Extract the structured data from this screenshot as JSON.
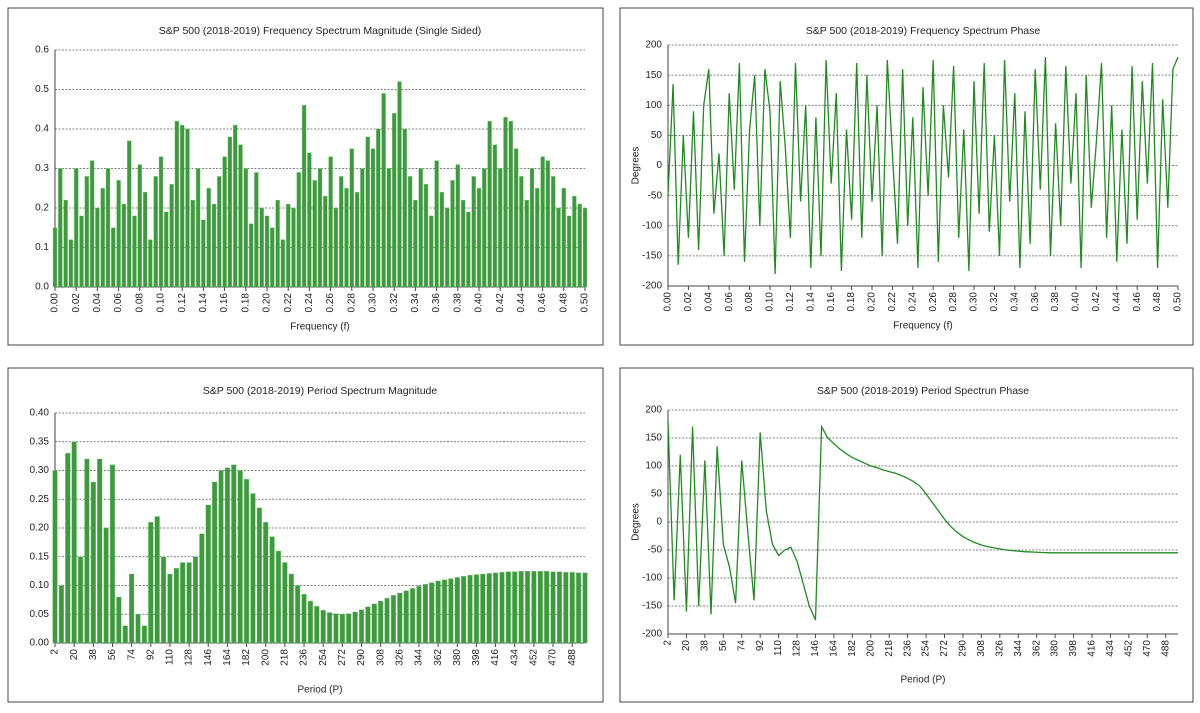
{
  "chart_data": [
    {
      "type": "bar",
      "title": "S&P 500 (2018-2019) Frequency Spectrum Magnitude  (Single Sided)",
      "xlabel": "Frequency (f)",
      "color": "#3d9b3d",
      "grid": true,
      "xlim": [
        0,
        0.5
      ],
      "ylim": [
        0,
        0.6
      ],
      "yticks": [
        {
          "value": 0,
          "label": "0.0"
        },
        0.1,
        0.2,
        0.3,
        0.4,
        0.5,
        0.6
      ],
      "xticks": [
        {
          "value": 0,
          "label": "0.00"
        },
        {
          "value": 0.02,
          "label": "0.02"
        },
        {
          "value": 0.04,
          "label": "0.04"
        },
        {
          "value": 0.06,
          "label": "0.06"
        },
        {
          "value": 0.08,
          "label": "0.08"
        },
        {
          "value": 0.1,
          "label": "0.10"
        },
        {
          "value": 0.12,
          "label": "0.12"
        },
        {
          "value": 0.14,
          "label": "0.14"
        },
        {
          "value": 0.16,
          "label": "0.16"
        },
        {
          "value": 0.18,
          "label": "0.18"
        },
        {
          "value": 0.2,
          "label": "0.20"
        },
        {
          "value": 0.22,
          "label": "0.22"
        },
        {
          "value": 0.24,
          "label": "0.24"
        },
        {
          "value": 0.26,
          "label": "0.26"
        },
        {
          "value": 0.28,
          "label": "0.28"
        },
        {
          "value": 0.3,
          "label": "0.30"
        },
        {
          "value": 0.32,
          "label": "0.32"
        },
        {
          "value": 0.34,
          "label": "0.34"
        },
        {
          "value": 0.36,
          "label": "0.36"
        },
        {
          "value": 0.38,
          "label": "0.38"
        },
        {
          "value": 0.4,
          "label": "0.40"
        },
        {
          "value": 0.42,
          "label": "0.42"
        },
        {
          "value": 0.44,
          "label": "0.44"
        },
        {
          "value": 0.46,
          "label": "0.46"
        },
        {
          "value": 0.48,
          "label": "0.48"
        },
        {
          "value": 0.5,
          "label": "0.50"
        }
      ],
      "x": [
        0,
        0.005,
        0.01,
        0.015,
        0.02,
        0.025,
        0.03,
        0.035,
        0.04,
        0.045,
        0.05,
        0.055,
        0.06,
        0.065,
        0.07,
        0.075,
        0.08,
        0.085,
        0.09,
        0.095,
        0.1,
        0.105,
        0.11,
        0.115,
        0.12,
        0.125,
        0.13,
        0.135,
        0.14,
        0.145,
        0.15,
        0.155,
        0.16,
        0.165,
        0.17,
        0.175,
        0.18,
        0.185,
        0.19,
        0.195,
        0.2,
        0.205,
        0.21,
        0.215,
        0.22,
        0.225,
        0.23,
        0.235,
        0.24,
        0.245,
        0.25,
        0.255,
        0.26,
        0.265,
        0.27,
        0.275,
        0.28,
        0.285,
        0.29,
        0.295,
        0.3,
        0.305,
        0.31,
        0.315,
        0.32,
        0.325,
        0.33,
        0.335,
        0.34,
        0.345,
        0.35,
        0.355,
        0.36,
        0.365,
        0.37,
        0.375,
        0.38,
        0.385,
        0.39,
        0.395,
        0.4,
        0.405,
        0.41,
        0.415,
        0.42,
        0.425,
        0.43,
        0.435,
        0.44,
        0.445,
        0.45,
        0.455,
        0.46,
        0.465,
        0.47,
        0.475,
        0.48,
        0.485,
        0.49,
        0.495,
        0.5
      ],
      "values": [
        0.15,
        0.3,
        0.22,
        0.12,
        0.3,
        0.18,
        0.28,
        0.32,
        0.2,
        0.25,
        0.3,
        0.15,
        0.27,
        0.21,
        0.37,
        0.18,
        0.31,
        0.24,
        0.12,
        0.28,
        0.33,
        0.19,
        0.26,
        0.42,
        0.41,
        0.4,
        0.22,
        0.3,
        0.17,
        0.25,
        0.21,
        0.28,
        0.33,
        0.38,
        0.41,
        0.36,
        0.3,
        0.16,
        0.29,
        0.2,
        0.18,
        0.15,
        0.22,
        0.12,
        0.21,
        0.2,
        0.29,
        0.46,
        0.34,
        0.27,
        0.3,
        0.23,
        0.33,
        0.2,
        0.28,
        0.25,
        0.35,
        0.24,
        0.3,
        0.38,
        0.35,
        0.4,
        0.49,
        0.3,
        0.44,
        0.52,
        0.4,
        0.28,
        0.22,
        0.3,
        0.26,
        0.18,
        0.32,
        0.24,
        0.2,
        0.27,
        0.31,
        0.22,
        0.19,
        0.28,
        0.25,
        0.3,
        0.42,
        0.36,
        0.3,
        0.43,
        0.42,
        0.35,
        0.28,
        0.22,
        0.3,
        0.25,
        0.33,
        0.32,
        0.28,
        0.2,
        0.25,
        0.18,
        0.23,
        0.21,
        0.2
      ]
    },
    {
      "type": "line",
      "title": "S&P 500 (2018-2019) Frequency Spectrum Phase",
      "xlabel": "Frequency (f)",
      "ylabel": "Degrees",
      "color": "#1f8c1f",
      "grid": true,
      "xlim": [
        0,
        0.5
      ],
      "ylim": [
        -200,
        200
      ],
      "yticks": [
        -200,
        -150,
        -100,
        -50,
        0,
        50,
        100,
        150,
        200
      ],
      "xticks": [
        {
          "value": 0,
          "label": "0.00"
        },
        {
          "value": 0.02,
          "label": "0.02"
        },
        {
          "value": 0.04,
          "label": "0.04"
        },
        {
          "value": 0.06,
          "label": "0.06"
        },
        {
          "value": 0.08,
          "label": "0.08"
        },
        {
          "value": 0.1,
          "label": "0.10"
        },
        {
          "value": 0.12,
          "label": "0.12"
        },
        {
          "value": 0.14,
          "label": "0.14"
        },
        {
          "value": 0.16,
          "label": "0.16"
        },
        {
          "value": 0.18,
          "label": "0.18"
        },
        {
          "value": 0.2,
          "label": "0.20"
        },
        {
          "value": 0.22,
          "label": "0.22"
        },
        {
          "value": 0.24,
          "label": "0.24"
        },
        {
          "value": 0.26,
          "label": "0.26"
        },
        {
          "value": 0.28,
          "label": "0.28"
        },
        {
          "value": 0.3,
          "label": "0.30"
        },
        {
          "value": 0.32,
          "label": "0.32"
        },
        {
          "value": 0.34,
          "label": "0.34"
        },
        {
          "value": 0.36,
          "label": "0.36"
        },
        {
          "value": 0.38,
          "label": "0.38"
        },
        {
          "value": 0.4,
          "label": "0.40"
        },
        {
          "value": 0.42,
          "label": "0.42"
        },
        {
          "value": 0.44,
          "label": "0.44"
        },
        {
          "value": 0.46,
          "label": "0.46"
        },
        {
          "value": 0.48,
          "label": "0.48"
        },
        {
          "value": 0.5,
          "label": "0.50"
        }
      ],
      "x": [
        0,
        0.005,
        0.01,
        0.015,
        0.02,
        0.025,
        0.03,
        0.035,
        0.04,
        0.045,
        0.05,
        0.055,
        0.06,
        0.065,
        0.07,
        0.075,
        0.08,
        0.085,
        0.09,
        0.095,
        0.1,
        0.105,
        0.11,
        0.115,
        0.12,
        0.125,
        0.13,
        0.135,
        0.14,
        0.145,
        0.15,
        0.155,
        0.16,
        0.165,
        0.17,
        0.175,
        0.18,
        0.185,
        0.19,
        0.195,
        0.2,
        0.205,
        0.21,
        0.215,
        0.22,
        0.225,
        0.23,
        0.235,
        0.24,
        0.245,
        0.25,
        0.255,
        0.26,
        0.265,
        0.27,
        0.275,
        0.28,
        0.285,
        0.29,
        0.295,
        0.3,
        0.305,
        0.31,
        0.315,
        0.32,
        0.325,
        0.33,
        0.335,
        0.34,
        0.345,
        0.35,
        0.355,
        0.36,
        0.365,
        0.37,
        0.375,
        0.38,
        0.385,
        0.39,
        0.395,
        0.4,
        0.405,
        0.41,
        0.415,
        0.42,
        0.425,
        0.43,
        0.435,
        0.44,
        0.445,
        0.45,
        0.455,
        0.46,
        0.465,
        0.47,
        0.475,
        0.48,
        0.485,
        0.49,
        0.495,
        0.5
      ],
      "values": [
        -50,
        135,
        -165,
        50,
        -120,
        90,
        -140,
        100,
        160,
        -80,
        20,
        -150,
        120,
        -40,
        170,
        -160,
        60,
        150,
        -100,
        160,
        90,
        -180,
        140,
        30,
        -120,
        170,
        -60,
        100,
        -170,
        80,
        -150,
        175,
        -30,
        120,
        -175,
        60,
        -90,
        170,
        -120,
        150,
        -60,
        100,
        -150,
        175,
        20,
        -130,
        160,
        -100,
        80,
        -170,
        130,
        -50,
        175,
        -160,
        100,
        -20,
        165,
        -120,
        60,
        -175,
        140,
        -80,
        170,
        -110,
        50,
        -150,
        175,
        -60,
        120,
        -170,
        90,
        -130,
        160,
        -40,
        180,
        -150,
        70,
        -100,
        165,
        -30,
        120,
        -170,
        150,
        -70,
        40,
        170,
        -120,
        100,
        -160,
        60,
        -130,
        165,
        -90,
        140,
        -30,
        170,
        -170,
        110,
        -70,
        160,
        180
      ]
    },
    {
      "type": "bar",
      "title": "S&P 500 (2018-2019) Period Spectrum Magnitude",
      "xlabel": "Period (P)",
      "color": "#3d9b3d",
      "grid": true,
      "xlim": [
        2,
        500
      ],
      "ylim": [
        0,
        0.4
      ],
      "yticks": [
        {
          "value": 0,
          "label": "0.00"
        },
        {
          "value": 0.05,
          "label": "0.05"
        },
        {
          "value": 0.1,
          "label": "0.10"
        },
        {
          "value": 0.15,
          "label": "0.15"
        },
        {
          "value": 0.2,
          "label": "0.20"
        },
        {
          "value": 0.25,
          "label": "0.25"
        },
        {
          "value": 0.3,
          "label": "0.30"
        },
        {
          "value": 0.35,
          "label": "0.35"
        },
        {
          "value": 0.4,
          "label": "0.40"
        }
      ],
      "xticks": [
        2,
        20,
        38,
        56,
        74,
        92,
        110,
        128,
        146,
        164,
        182,
        200,
        218,
        236,
        254,
        272,
        290,
        308,
        326,
        344,
        362,
        380,
        398,
        416,
        434,
        452,
        470,
        488
      ],
      "x": [
        2,
        8,
        14,
        20,
        26,
        32,
        38,
        44,
        50,
        56,
        62,
        68,
        74,
        80,
        86,
        92,
        98,
        104,
        110,
        116,
        122,
        128,
        134,
        140,
        146,
        152,
        158,
        164,
        170,
        176,
        182,
        188,
        194,
        200,
        206,
        212,
        218,
        224,
        230,
        236,
        242,
        248,
        254,
        260,
        266,
        272,
        278,
        284,
        290,
        296,
        302,
        308,
        314,
        320,
        326,
        332,
        338,
        344,
        350,
        356,
        362,
        368,
        374,
        380,
        386,
        392,
        398,
        404,
        410,
        416,
        422,
        428,
        434,
        440,
        446,
        452,
        458,
        464,
        470,
        476,
        482,
        488,
        494,
        500
      ],
      "values": [
        0.3,
        0.1,
        0.33,
        0.35,
        0.15,
        0.32,
        0.28,
        0.32,
        0.2,
        0.31,
        0.08,
        0.03,
        0.12,
        0.05,
        0.03,
        0.21,
        0.22,
        0.15,
        0.12,
        0.13,
        0.14,
        0.14,
        0.15,
        0.19,
        0.24,
        0.28,
        0.3,
        0.305,
        0.31,
        0.3,
        0.285,
        0.26,
        0.235,
        0.21,
        0.185,
        0.16,
        0.14,
        0.12,
        0.1,
        0.085,
        0.073,
        0.064,
        0.057,
        0.053,
        0.051,
        0.05,
        0.051,
        0.054,
        0.058,
        0.063,
        0.068,
        0.073,
        0.078,
        0.083,
        0.087,
        0.091,
        0.095,
        0.099,
        0.102,
        0.105,
        0.108,
        0.11,
        0.112,
        0.114,
        0.116,
        0.118,
        0.119,
        0.12,
        0.121,
        0.122,
        0.123,
        0.124,
        0.124,
        0.125,
        0.125,
        0.125,
        0.125,
        0.125,
        0.124,
        0.124,
        0.123,
        0.123,
        0.122,
        0.122
      ]
    },
    {
      "type": "line",
      "title": "S&P 500 (2018-2019) Period Spectrun Phase",
      "xlabel": "Period (P)",
      "ylabel": "Degrees",
      "color": "#1f8c1f",
      "grid": true,
      "xlim": [
        2,
        500
      ],
      "ylim": [
        -200,
        200
      ],
      "yticks": [
        -200,
        -150,
        -100,
        -50,
        0,
        50,
        100,
        150,
        200
      ],
      "xticks": [
        2,
        20,
        38,
        56,
        74,
        92,
        110,
        128,
        146,
        164,
        182,
        200,
        218,
        236,
        254,
        272,
        290,
        308,
        326,
        344,
        362,
        380,
        398,
        416,
        434,
        452,
        470,
        488
      ],
      "x": [
        2,
        8,
        14,
        20,
        26,
        32,
        38,
        44,
        50,
        56,
        62,
        68,
        74,
        80,
        86,
        92,
        98,
        104,
        110,
        116,
        122,
        128,
        134,
        140,
        146,
        152,
        158,
        164,
        170,
        176,
        182,
        188,
        194,
        200,
        206,
        212,
        218,
        224,
        230,
        236,
        242,
        248,
        254,
        260,
        266,
        272,
        278,
        284,
        290,
        296,
        302,
        308,
        314,
        320,
        326,
        332,
        338,
        344,
        350,
        356,
        362,
        368,
        374,
        380,
        386,
        392,
        398,
        404,
        410,
        416,
        422,
        428,
        434,
        440,
        446,
        452,
        458,
        464,
        470,
        476,
        482,
        488,
        494,
        500
      ],
      "values": [
        180,
        -140,
        120,
        -160,
        170,
        -150,
        110,
        -165,
        135,
        -40,
        -80,
        -145,
        110,
        -20,
        -140,
        160,
        20,
        -40,
        -60,
        -50,
        -45,
        -70,
        -110,
        -150,
        -175,
        170,
        150,
        140,
        130,
        122,
        115,
        110,
        105,
        100,
        97,
        93,
        90,
        87,
        83,
        78,
        72,
        64,
        50,
        35,
        20,
        5,
        -8,
        -18,
        -26,
        -32,
        -37,
        -41,
        -44,
        -46,
        -48,
        -50,
        -51,
        -52,
        -53,
        -53.5,
        -54,
        -54.5,
        -55,
        -55,
        -55,
        -55,
        -55,
        -55,
        -55,
        -55,
        -55,
        -55,
        -55,
        -55,
        -55,
        -55,
        -55,
        -55,
        -55,
        -55,
        -55,
        -55,
        -55,
        -55
      ]
    }
  ]
}
